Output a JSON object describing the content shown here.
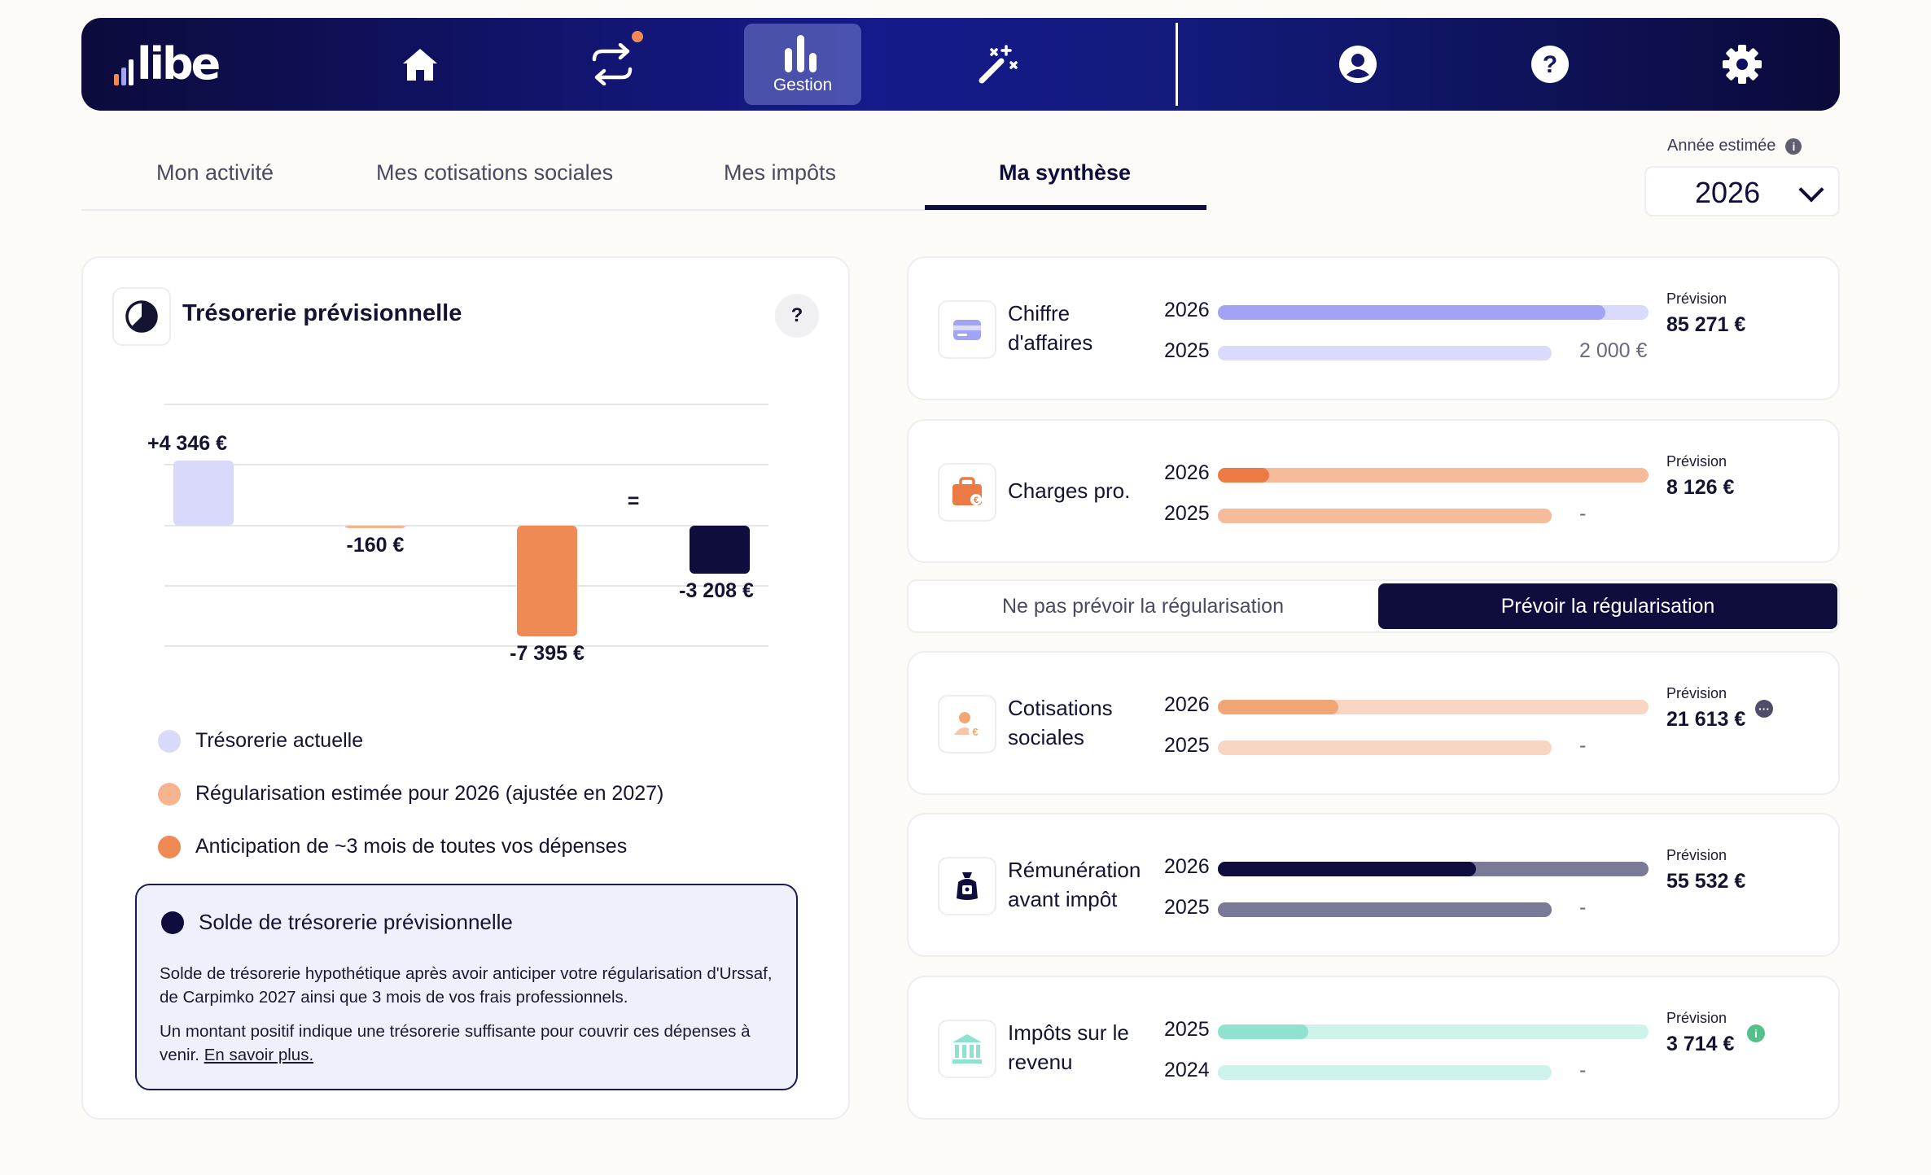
{
  "brand": {
    "name": "libe"
  },
  "nav": {
    "active_label": "Gestion",
    "items": [
      "home-icon",
      "transfer-icon",
      "gestion-chart-icon",
      "magic-wand-icon",
      "user-icon",
      "help-icon",
      "settings-icon"
    ]
  },
  "tabs": [
    {
      "label": "Mon activité"
    },
    {
      "label": "Mes cotisations sociales"
    },
    {
      "label": "Mes impôts"
    },
    {
      "label": "Ma synthèse",
      "active": true
    }
  ],
  "year_selector": {
    "label": "Année estimée",
    "value": "2026"
  },
  "tresorerie": {
    "title": "Trésorerie prévisionnelle",
    "help": "?",
    "equals_sign": "=",
    "legend": [
      {
        "label": "Trésorerie actuelle",
        "color": "#d8d9fb"
      },
      {
        "label": "Régularisation estimée pour 2026 (ajustée en 2027)",
        "color": "#f5b48e"
      },
      {
        "label": "Anticipation de ~3 mois de toutes vos dépenses",
        "color": "#f08a55"
      }
    ],
    "solde": {
      "title": "Solde de trésorerie prévisionnelle",
      "p1": "Solde de trésorerie hypothétique après avoir anticiper votre régularisation d'Urssaf, de Carpimko 2027 ainsi que 3 mois de vos frais professionnels.",
      "p2": "Un montant positif indique une trésorerie suffisante pour couvrir ces dépenses à venir.",
      "link": "En savoir plus."
    }
  },
  "chart_data": {
    "type": "bar",
    "subtype": "waterfall",
    "categories": [
      "Trésorerie actuelle",
      "Régularisation estimée pour 2026 (ajustée en 2027)",
      "Anticipation de ~3 mois de toutes vos dépenses",
      "Solde de trésorerie prévisionnelle"
    ],
    "values": [
      4346,
      -160,
      -7395,
      -3208
    ],
    "labels": [
      "+4 346 €",
      "-160 €",
      "-7 395 €",
      "-3 208 €"
    ],
    "colors": [
      "#d8d9fb",
      "#f5b48e",
      "#f08a55",
      "#0e0d3e"
    ],
    "grid": true
  },
  "toggle": {
    "off_label": "Ne pas prévoir la régularisation",
    "on_label": "Prévoir la régularisation",
    "selected": "on"
  },
  "metrics": [
    {
      "label_l1": "Chiffre",
      "label_l2": "d'affaires",
      "icon": "wallet-icon",
      "rows": [
        {
          "year": "2026",
          "fill_pct": 90,
          "value": ""
        },
        {
          "year": "2025",
          "fill_pct": 100,
          "value": "2 000 €"
        }
      ],
      "prevision_label": "Prévision",
      "prevision": "85 271 €",
      "colors": {
        "fill": "#a1a4f5",
        "track": "#d9dafc",
        "track2": "#d9dafc"
      }
    },
    {
      "label_l1": "Charges pro.",
      "label_l2": "",
      "icon": "briefcase-icon",
      "rows": [
        {
          "year": "2026",
          "fill_pct": 12,
          "value": ""
        },
        {
          "year": "2025",
          "fill_pct": 100,
          "value": "-"
        }
      ],
      "prevision_label": "Prévision",
      "prevision": "8 126 €",
      "colors": {
        "fill": "#ec7a45",
        "track": "#f5bb9b",
        "track2": "#f5bb9b"
      }
    },
    {
      "label_l1": "Cotisations",
      "label_l2": "sociales",
      "icon": "person-euro-icon",
      "rows": [
        {
          "year": "2026",
          "fill_pct": 28,
          "value": ""
        },
        {
          "year": "2025",
          "fill_pct": 100,
          "value": "-"
        }
      ],
      "prevision_label": "Prévision",
      "prevision": "21 613 €",
      "colors": {
        "fill": "#f2a675",
        "track": "#f8d6c3",
        "track2": "#f8d6c3"
      }
    },
    {
      "label_l1": "Rémunération",
      "label_l2": "avant impôt",
      "icon": "money-bag-icon",
      "rows": [
        {
          "year": "2026",
          "fill_pct": 60,
          "value": ""
        },
        {
          "year": "2025",
          "fill_pct": 100,
          "value": "-"
        }
      ],
      "prevision_label": "Prévision",
      "prevision": "55 532 €",
      "colors": {
        "fill": "#0e0d3e",
        "track": "#7a7a98",
        "track2": "#7a7a98"
      }
    },
    {
      "label_l1": "Impôts sur le",
      "label_l2": "revenu",
      "icon": "bank-icon",
      "rows": [
        {
          "year": "2025",
          "fill_pct": 21,
          "value": ""
        },
        {
          "year": "2024",
          "fill_pct": 100,
          "value": "-"
        }
      ],
      "prevision_label": "Prévision",
      "prevision": "3 714 €",
      "colors": {
        "fill": "#8ee2cf",
        "track": "#cdf3ea",
        "track2": "#cdf3ea"
      }
    }
  ]
}
